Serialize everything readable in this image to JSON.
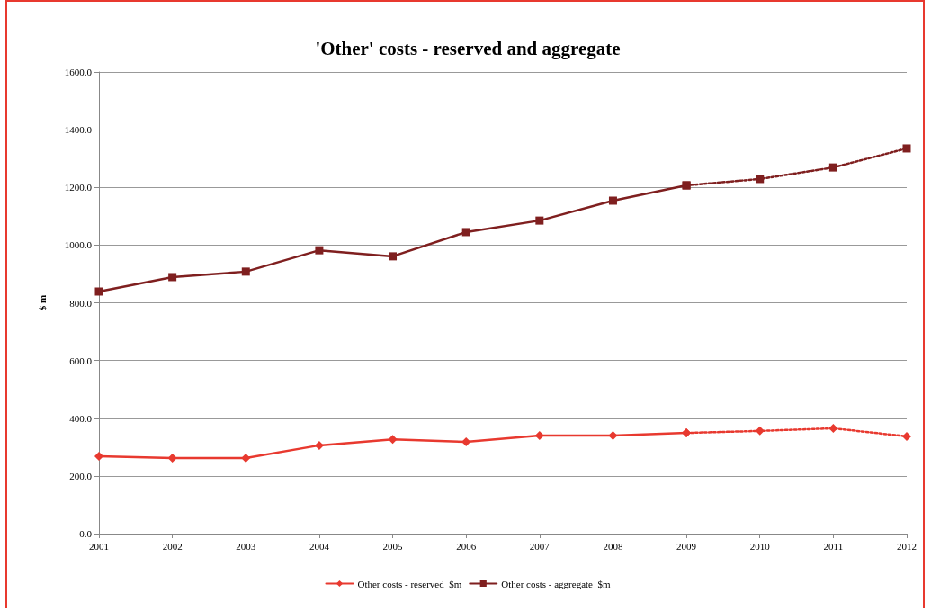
{
  "chart_data": {
    "type": "line",
    "title": "'Other' costs - reserved and aggregate",
    "ylabel": "$ m",
    "categories": [
      "2001",
      "2002",
      "2003",
      "2004",
      "2005",
      "2006",
      "2007",
      "2008",
      "2009",
      "2010",
      "2011",
      "2012"
    ],
    "series": [
      {
        "name": "Other costs - reserved  $m",
        "color": "#e8392f",
        "marker": "diamond",
        "line_style": "solid",
        "values": [
          268,
          262,
          262,
          306,
          327,
          318,
          340,
          340,
          349,
          null,
          null,
          null
        ]
      },
      {
        "name": "Other costs - aggregate  $m",
        "color": "#7f1f1f",
        "marker": "square",
        "line_style": "solid",
        "values": [
          839,
          889,
          908,
          982,
          961,
          1045,
          1085,
          1154,
          1207,
          null,
          null,
          null
        ]
      },
      {
        "color": "#e8392f",
        "marker": "diamond",
        "line_style": "dotted",
        "values": [
          null,
          null,
          null,
          null,
          null,
          null,
          null,
          null,
          349,
          356,
          365,
          337
        ]
      },
      {
        "color": "#7f1f1f",
        "marker": "square",
        "line_style": "dotted",
        "values": [
          null,
          null,
          null,
          null,
          null,
          null,
          null,
          null,
          1207,
          1229,
          1269,
          1335
        ]
      }
    ],
    "ylim": [
      0,
      1600
    ],
    "yticks": [
      {
        "value": 0,
        "label": "0.0"
      },
      {
        "value": 200,
        "label": "200.0"
      },
      {
        "value": 400,
        "label": "400.0"
      },
      {
        "value": 600,
        "label": "600.0"
      },
      {
        "value": 800,
        "label": "800.0"
      },
      {
        "value": 1000,
        "label": "1000.0"
      },
      {
        "value": 1200,
        "label": "1200.0"
      },
      {
        "value": 1400,
        "label": "1400.0"
      },
      {
        "value": 1600,
        "label": "1600.0"
      }
    ],
    "grid": "y",
    "legend": "bottom"
  }
}
